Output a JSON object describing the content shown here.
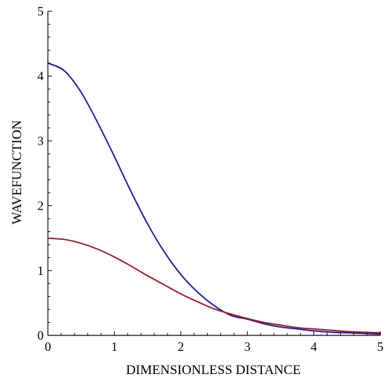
{
  "chart_data": {
    "type": "line",
    "title": "",
    "xlabel": "DIMENSIONLESS DISTANCE",
    "ylabel": "WAVEFUNCTION",
    "xlim": [
      0,
      5
    ],
    "ylim": [
      0,
      5
    ],
    "x_ticks": [
      0,
      1,
      2,
      3,
      4,
      5
    ],
    "y_ticks": [
      0,
      1,
      2,
      3,
      4,
      5
    ],
    "x_tick_labels": [
      "0",
      "1",
      "2",
      "3",
      "4",
      "5"
    ],
    "y_tick_labels": [
      "0",
      "1",
      "2",
      "3",
      "4",
      "5"
    ],
    "grid": false,
    "legend": "none",
    "series": [
      {
        "color": "#1f1f9e",
        "x": [
          0,
          0.25,
          0.5,
          0.75,
          1.0,
          1.25,
          1.5,
          1.75,
          2.0,
          2.25,
          2.5,
          2.75,
          3.0,
          3.25,
          3.5,
          3.75,
          4.0,
          4.25,
          4.5,
          4.75,
          5.0
        ],
        "y": [
          4.2,
          4.08,
          3.75,
          3.28,
          2.76,
          2.22,
          1.72,
          1.29,
          0.94,
          0.67,
          0.46,
          0.31,
          0.25,
          0.18,
          0.13,
          0.1,
          0.07,
          0.05,
          0.04,
          0.03,
          0.02
        ]
      },
      {
        "color": "#9e1f2a",
        "x": [
          0,
          0.25,
          0.5,
          0.75,
          1.0,
          1.25,
          1.5,
          1.75,
          2.0,
          2.25,
          2.5,
          2.75,
          3.0,
          3.25,
          3.5,
          3.75,
          4.0,
          4.25,
          4.5,
          4.75,
          5.0
        ],
        "y": [
          1.5,
          1.48,
          1.42,
          1.33,
          1.21,
          1.07,
          0.92,
          0.78,
          0.64,
          0.52,
          0.41,
          0.33,
          0.26,
          0.2,
          0.16,
          0.12,
          0.1,
          0.08,
          0.06,
          0.05,
          0.04
        ]
      }
    ]
  }
}
